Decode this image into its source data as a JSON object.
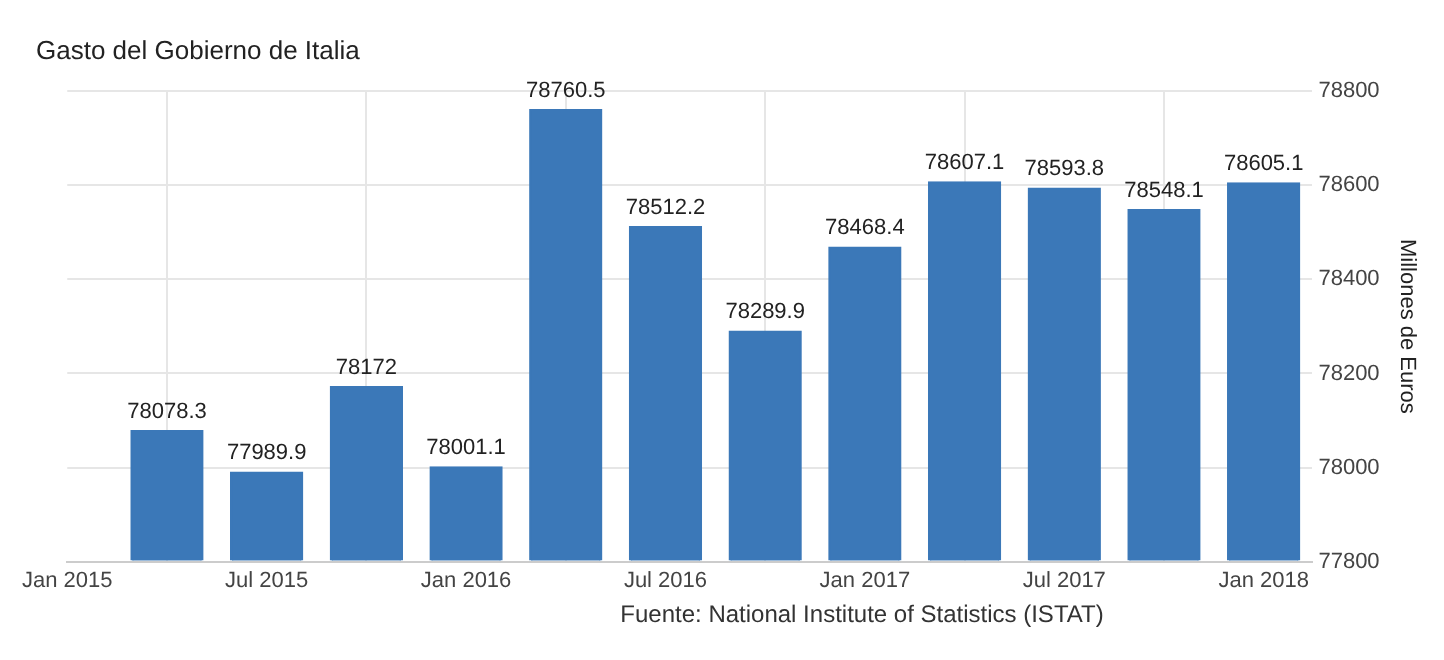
{
  "chart_data": {
    "type": "bar",
    "title": "Gasto del Gobierno de Italia",
    "ylabel": "Millones de Euros",
    "x": [
      "2015-04",
      "2015-07",
      "2015-10",
      "2016-01",
      "2016-04",
      "2016-07",
      "2016-10",
      "2017-01",
      "2017-04",
      "2017-07",
      "2017-10",
      "2018-01"
    ],
    "values": [
      78078.3,
      77989.9,
      78172,
      78001.1,
      78760.5,
      78512.2,
      78289.9,
      78468.4,
      78607.1,
      78593.8,
      78548.1,
      78605.1
    ],
    "color": "#3b78b8",
    "data_labels": true,
    "xlim": [
      "2015-01",
      "2018-02-15"
    ],
    "xticks": [
      {
        "value": "2015-01",
        "label": "Jan 2015"
      },
      {
        "value": "2015-07",
        "label": "Jul 2015"
      },
      {
        "value": "2016-01",
        "label": "Jan 2016"
      },
      {
        "value": "2016-07",
        "label": "Jul 2016"
      },
      {
        "value": "2017-01",
        "label": "Jan 2017"
      },
      {
        "value": "2017-07",
        "label": "Jul 2017"
      },
      {
        "value": "2018-01",
        "label": "Jan 2018"
      }
    ],
    "ylim": [
      77800,
      78800
    ],
    "yticks": [
      77800,
      78000,
      78200,
      78400,
      78600,
      78800
    ],
    "grid": true,
    "annotations": [
      "Fuente: National Institute of Statistics (ISTAT)"
    ]
  }
}
